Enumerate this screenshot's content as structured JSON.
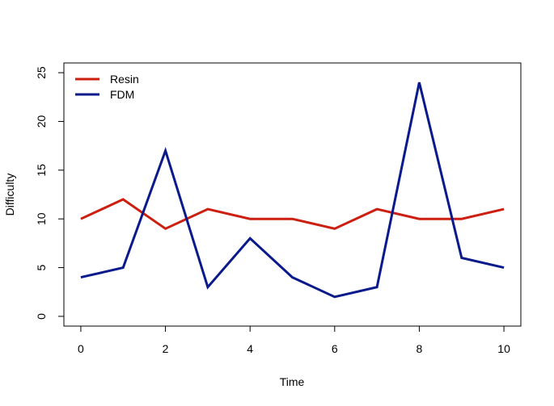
{
  "chart_data": {
    "type": "line",
    "title": "",
    "xlabel": "Time",
    "ylabel": "Difficulty",
    "x": [
      0,
      1,
      2,
      3,
      4,
      5,
      6,
      7,
      8,
      9,
      10
    ],
    "xlim": [
      -0.4,
      10.4
    ],
    "ylim": [
      -1,
      26
    ],
    "xticks": [
      0,
      2,
      4,
      6,
      8,
      10
    ],
    "yticks": [
      0,
      5,
      10,
      15,
      20,
      25
    ],
    "grid": false,
    "legend_position": "top-left",
    "series": [
      {
        "name": "Resin",
        "color": "#cc1f0f",
        "values": [
          10,
          12,
          9,
          11,
          10,
          10,
          9,
          11,
          10,
          10,
          11
        ]
      },
      {
        "name": "FDM",
        "color": "#0a1a8c",
        "values": [
          4,
          5,
          17,
          3,
          8,
          4,
          2,
          3,
          24,
          6,
          5
        ]
      }
    ]
  }
}
